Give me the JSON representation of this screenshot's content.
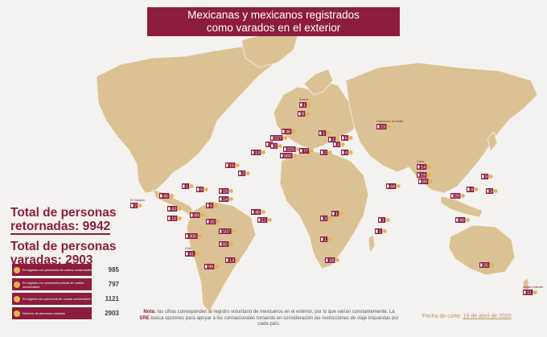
{
  "title": {
    "line1": "Mexicanas y mexicanos registrados",
    "line2": "como varados en el exterior"
  },
  "totals": {
    "retornadas_line1": "Total de personas",
    "retornadas_line2": "retornadas: 9942",
    "varadas_line1": "Total de personas",
    "varadas_line2": "varadas: 2903"
  },
  "legend": [
    {
      "label": "En lugares con presencia de vuelos comerciales",
      "value": "985"
    },
    {
      "label": "En lugares con presencia parcial de vuelos comerciales",
      "value": "797"
    },
    {
      "label": "En lugares sin presencia de vuelos comerciales",
      "value": "1121"
    },
    {
      "label": "Número de personas varadas",
      "value": "2903"
    }
  ],
  "note": {
    "prefix": "Nota:",
    "text1": " las cifras corresponden al registro voluntario de mexicanos en el exterior, por lo que varían constantemente. La ",
    "sre": "SRE",
    "text2": " busca opciones para apoyar a los connacionales tomando en consideración las restricciones de viaje impuestas por cada país."
  },
  "date": {
    "prefix": "Fecha de corte: ",
    "value": "19 de abril de 2020"
  },
  "colors": {
    "brand": "#8c1d3f",
    "land": "#dbc294",
    "background": "#f3f2f0",
    "marker": "#e3b450"
  },
  "markers": [
    {
      "label": "Suecia",
      "value": "1"
    },
    {
      "label": "",
      "value": "8"
    },
    {
      "label": "Federación de Rusia",
      "value": "23"
    },
    {
      "label": "",
      "value": "38"
    },
    {
      "label": "",
      "value": "227"
    },
    {
      "label": "",
      "value": "1"
    },
    {
      "label": "",
      "value": "3"
    },
    {
      "label": "",
      "value": "13"
    },
    {
      "label": "",
      "value": "2"
    },
    {
      "label": "",
      "value": "225"
    },
    {
      "label": "",
      "value": "560"
    },
    {
      "label": "",
      "value": "77"
    },
    {
      "label": "",
      "value": "2"
    },
    {
      "label": "",
      "value": "1"
    },
    {
      "label": "",
      "value": "6"
    },
    {
      "label": "",
      "value": "3"
    },
    {
      "label": "",
      "value": "4"
    },
    {
      "label": "",
      "value": "15"
    },
    {
      "label": "",
      "value": "2"
    },
    {
      "label": "China",
      "value": "14"
    },
    {
      "label": "",
      "value": "19"
    },
    {
      "label": "",
      "value": "9"
    },
    {
      "label": "",
      "value": "89"
    },
    {
      "label": "",
      "value": "20"
    },
    {
      "label": "",
      "value": "4"
    },
    {
      "label": "",
      "value": "3"
    },
    {
      "label": "",
      "value": "44"
    },
    {
      "label": "",
      "value": "46"
    },
    {
      "label": "",
      "value": "25"
    },
    {
      "label": "",
      "value": "1"
    },
    {
      "label": "",
      "value": "45"
    },
    {
      "label": "",
      "value": "9"
    },
    {
      "label": "",
      "value": "15"
    },
    {
      "label": "",
      "value": "14"
    },
    {
      "label": "",
      "value": "5"
    },
    {
      "label": "El Salvador",
      "value": "2"
    },
    {
      "label": "",
      "value": "43"
    },
    {
      "label": "",
      "value": "16"
    },
    {
      "label": "",
      "value": "99"
    },
    {
      "label": "",
      "value": "32"
    },
    {
      "label": "",
      "value": "107"
    },
    {
      "label": "",
      "value": "46"
    },
    {
      "label": "",
      "value": "11"
    },
    {
      "label": "",
      "value": "306"
    },
    {
      "label": "",
      "value": "82"
    },
    {
      "label": "Chile",
      "value": "41"
    },
    {
      "label": "",
      "value": "13"
    },
    {
      "label": "",
      "value": "99"
    },
    {
      "label": "",
      "value": "1"
    },
    {
      "label": "",
      "value": "1"
    },
    {
      "label": "",
      "value": "1"
    },
    {
      "label": "",
      "value": "3"
    },
    {
      "label": "",
      "value": "1"
    },
    {
      "label": "",
      "value": "18"
    },
    {
      "label": "Nueva Zelandia",
      "value": "11"
    }
  ]
}
